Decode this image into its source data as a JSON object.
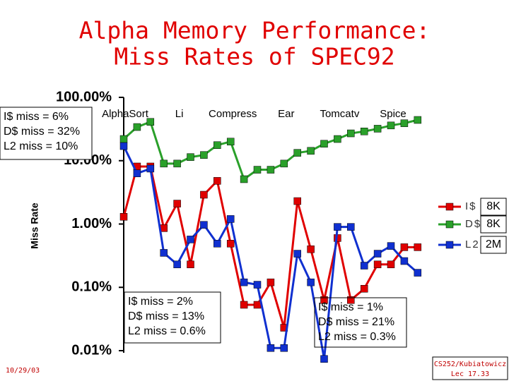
{
  "title_lines": [
    "Alpha Memory Performance:",
    "Miss Rates of SPEC92"
  ],
  "chart_data": {
    "type": "line",
    "y_label": "Miss Rate",
    "log_y": true,
    "categories": [
      "AlphaSort",
      null,
      null,
      null,
      "Li",
      null,
      null,
      null,
      "Compress",
      null,
      null,
      null,
      "Ear",
      null,
      null,
      null,
      "Tomcatv",
      null,
      null,
      null,
      "Spice",
      null,
      null
    ],
    "series": [
      {
        "name": "I$",
        "size": "8K",
        "color": "#e00000",
        "values": [
          1.3,
          8.1,
          8.1,
          0.86,
          2.1,
          0.23,
          2.9,
          4.8,
          0.49,
          0.053,
          0.053,
          0.12,
          0.023,
          2.3,
          0.4,
          0.063,
          0.6,
          0.063,
          0.095,
          0.23,
          0.23,
          0.43,
          0.43
        ]
      },
      {
        "name": "D$",
        "size": "8K",
        "color": "#2aa02a",
        "values": [
          22,
          34,
          41,
          9,
          9,
          11.4,
          12.3,
          17.6,
          20,
          5.1,
          7.2,
          7.2,
          9,
          13.3,
          14.3,
          18.5,
          22,
          27,
          29,
          32,
          36,
          39,
          44
        ]
      },
      {
        "name": "L2",
        "size": "2M",
        "color": "#1030d0",
        "values": [
          17,
          6.3,
          7.5,
          0.35,
          0.23,
          0.57,
          0.97,
          0.49,
          1.2,
          0.12,
          0.11,
          0.011,
          0.011,
          0.34,
          0.12,
          0.0074,
          0.9,
          0.9,
          0.22,
          0.34,
          0.45,
          0.26,
          0.17
        ]
      }
    ],
    "ylim": [
      0.01,
      100
    ],
    "yticks": [
      {
        "value": 100,
        "label": "100.00%"
      },
      {
        "value": 10,
        "label": "10.00%"
      },
      {
        "value": 1,
        "label": "1.00%"
      },
      {
        "value": 0.1,
        "label": "0.10%"
      },
      {
        "value": 0.01,
        "label": "0.01%"
      }
    ],
    "annotations": [
      {
        "lines": [
          "I$ miss = 6%",
          "D$ miss = 32%",
          "L2 miss = 10%"
        ]
      },
      {
        "lines": [
          "I$ miss = 2%",
          "D$ miss = 13%",
          "L2 miss = 0.6%"
        ]
      },
      {
        "lines": [
          "I$ miss = 1%",
          "D$ miss = 21%",
          "L2 miss = 0.3%"
        ]
      }
    ]
  },
  "footer": {
    "date": "10/29/03",
    "course": "CS252/Kubiatowicz",
    "lecture": "Lec 17.33"
  }
}
